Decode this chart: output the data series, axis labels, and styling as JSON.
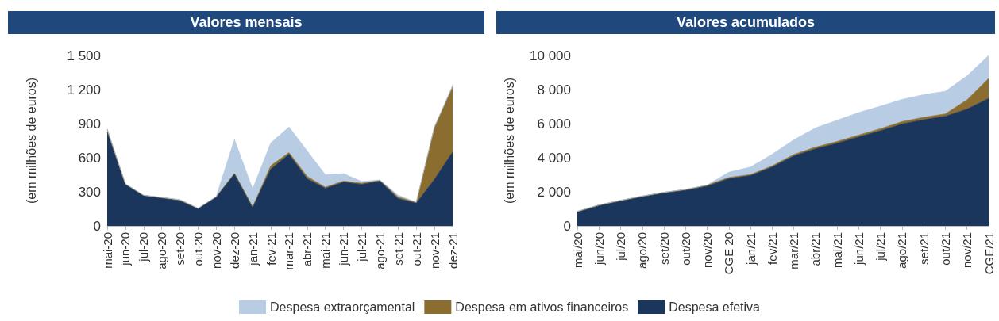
{
  "chart_data": [
    {
      "type": "area",
      "title": "Valores mensais",
      "ylabel": "(em milhões de euros)",
      "stacked": true,
      "grid": false,
      "legend": false,
      "marker": "none",
      "categories": [
        "mai-20",
        "jun-20",
        "jul-20",
        "ago-20",
        "set-20",
        "out-20",
        "nov-20",
        "dez-20",
        "jan-21",
        "fev-21",
        "mar-21",
        "abr-21",
        "mai-21",
        "jun-21",
        "jul-21",
        "ago-21",
        "set-21",
        "out-21",
        "nov-21",
        "dez-21"
      ],
      "ylim": [
        0,
        1500
      ],
      "yticks": [
        0,
        300,
        600,
        900,
        {
          "value": 1200,
          "label": "1 200"
        },
        {
          "value": 1500,
          "label": "1 500"
        }
      ],
      "series": [
        {
          "color": "#1b365d",
          "values": [
            820,
            365,
            265,
            245,
            220,
            150,
            255,
            460,
            165,
            500,
            630,
            415,
            330,
            385,
            365,
            395,
            240,
            200,
            410,
            650
          ]
        },
        {
          "color": "#8b6d2f",
          "values": [
            30,
            5,
            5,
            5,
            10,
            5,
            0,
            0,
            0,
            30,
            15,
            20,
            10,
            10,
            10,
            5,
            15,
            5,
            460,
            570
          ]
        },
        {
          "color": "#b8cce4",
          "values": [
            0,
            0,
            0,
            0,
            0,
            0,
            5,
            300,
            160,
            200,
            225,
            225,
            110,
            65,
            15,
            5,
            15,
            5,
            0,
            20
          ]
        }
      ]
    },
    {
      "type": "area",
      "title": "Valores acumulados",
      "ylabel": "(em milhões de euros)",
      "stacked": true,
      "grid": false,
      "legend": "bottom",
      "marker": "none",
      "categories": [
        "mai/20",
        "jun/20",
        "jul/20",
        "ago/20",
        "set/20",
        "out/20",
        "nov/20",
        "CGE 20",
        "jan/21",
        "fev/21",
        "mar/21",
        "abr/21",
        "mai/21",
        "jun/21",
        "jul/21",
        "ago/21",
        "set/21",
        "out/21",
        "nov/21",
        "CGE/21"
      ],
      "ylim": [
        0,
        10000
      ],
      "yticks": [
        0,
        {
          "value": 2000,
          "label": "2 000"
        },
        {
          "value": 4000,
          "label": "4 000"
        },
        {
          "value": 6000,
          "label": "6 000"
        },
        {
          "value": 8000,
          "label": "8 000"
        },
        {
          "value": 10000,
          "label": "10 000"
        }
      ],
      "series": [
        {
          "name": "Despesa efetiva",
          "color": "#1b365d",
          "values": [
            800,
            1180,
            1450,
            1700,
            1920,
            2080,
            2330,
            2780,
            2950,
            3450,
            4100,
            4520,
            4850,
            5220,
            5580,
            5980,
            6230,
            6430,
            6850,
            7480
          ]
        },
        {
          "name": "Despesa em ativos financeiros",
          "color": "#8b6d2f",
          "values": [
            50,
            50,
            50,
            50,
            50,
            60,
            60,
            60,
            60,
            70,
            90,
            100,
            100,
            110,
            120,
            140,
            140,
            140,
            550,
            1170
          ]
        },
        {
          "name": "Despesa extraorçamental",
          "color": "#b8cce4",
          "values": [
            0,
            0,
            0,
            0,
            0,
            0,
            10,
            310,
            440,
            680,
            860,
            1130,
            1250,
            1320,
            1320,
            1300,
            1330,
            1330,
            1400,
            1350
          ]
        }
      ]
    }
  ]
}
